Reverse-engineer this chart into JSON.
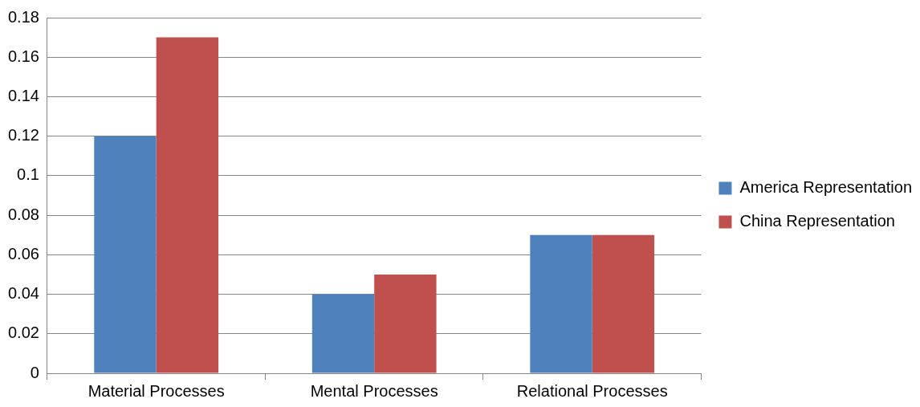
{
  "chart_data": {
    "type": "bar",
    "categories": [
      "Material Processes",
      "Mental Processes",
      "Relational Processes"
    ],
    "series": [
      {
        "name": "America Representation",
        "color": "#4f81bd",
        "values": [
          0.12,
          0.04,
          0.07
        ]
      },
      {
        "name": "China Representation",
        "color": "#c0504d",
        "values": [
          0.17,
          0.05,
          0.07
        ]
      }
    ],
    "ylim": [
      0,
      0.18
    ],
    "yticks": [
      0,
      0.02,
      0.04,
      0.06,
      0.08,
      0.1,
      0.12,
      0.14,
      0.16,
      0.18
    ],
    "grid": "y",
    "legend": "right"
  }
}
